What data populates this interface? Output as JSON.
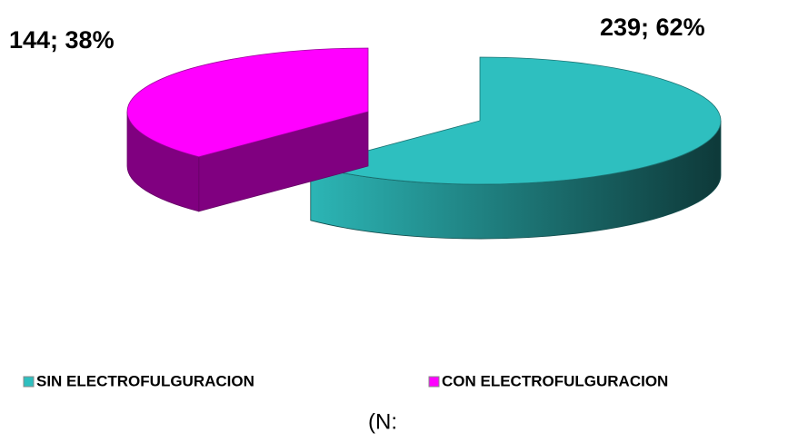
{
  "chart_data": {
    "type": "pie",
    "categories": [
      "SIN ELECTROFULGURACION",
      "CON ELECTROFULGURACION"
    ],
    "values": [
      239,
      144
    ],
    "value_labels": [
      "239; 62%",
      "144; 38%"
    ],
    "colors": [
      "#2ebfbf",
      "#ff00ff"
    ],
    "legend": "bottom",
    "annotation": "(N:"
  }
}
